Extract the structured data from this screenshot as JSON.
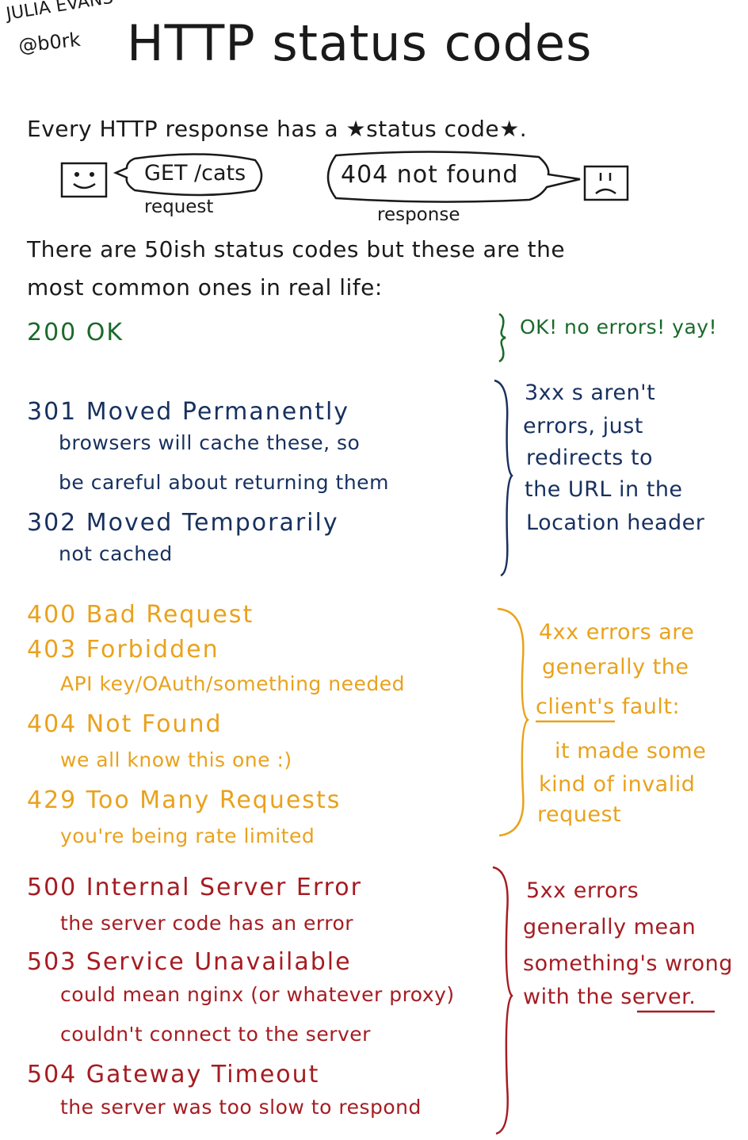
{
  "header": {
    "author_name": "JULIA EVANS",
    "author_handle": "@b0rk",
    "title": "HTTP status codes"
  },
  "intro": {
    "text": "Every HTTP response has a ★status code★.",
    "request_bubble": "GET /cats",
    "request_label": "request",
    "response_bubble": "404 not found",
    "response_label": "response",
    "there_line1": "There are 50ish status codes but these are the",
    "there_line2": "most common ones in real life:"
  },
  "groups": {
    "ok": {
      "color": "#1a6a2a",
      "code": "200 OK",
      "note": "OK! no errors! yay!"
    },
    "redirect": {
      "color": "#17305f",
      "code301": "301 Moved Permanently",
      "desc301_1": "browsers will cache these, so",
      "desc301_2": "be careful about returning them",
      "code302": "302 Moved Temporarily",
      "desc302": "not cached",
      "note1": "3xx s  aren't",
      "note2": "errors, just",
      "note3": "redirects to",
      "note4": "the URL in the",
      "note5": "Location header"
    },
    "client": {
      "color": "#e9a21c",
      "code400": "400 Bad Request",
      "code403": "403 Forbidden",
      "desc403": "API key/OAuth/something needed",
      "code404": "404 Not Found",
      "desc404": "we all know this one :)",
      "code429": "429 Too Many Requests",
      "desc429": "you're being rate limited",
      "note1": "4xx errors are",
      "note2": "generally the",
      "note3_u": "client's",
      "note3_rest": " fault:",
      "note4": "it made some",
      "note5": "kind of invalid",
      "note6": "request"
    },
    "server": {
      "color": "#a51c22",
      "code500": "500 Internal Server Error",
      "desc500": "the server code has an error",
      "code503": "503 Service Unavailable",
      "desc503_1": "could mean nginx (or whatever proxy)",
      "desc503_2": "couldn't connect to the server",
      "code504": "504 Gateway Timeout",
      "desc504": "the server was too slow to respond",
      "note1": "5xx errors",
      "note2": "generally mean",
      "note3": "something's wrong",
      "note4_pre": "with the ",
      "note4_u": "server",
      "note4_post": "."
    }
  }
}
